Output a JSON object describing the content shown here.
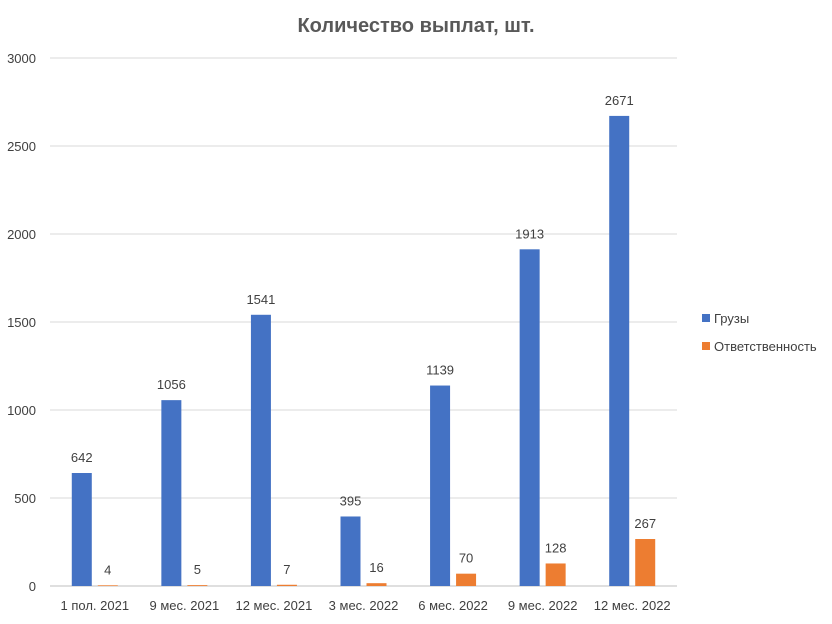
{
  "chart_data": {
    "type": "bar",
    "title": "Количество выплат, шт.",
    "xlabel": "",
    "ylabel": "",
    "categories": [
      "1 пол. 2021",
      "9 мес. 2021",
      "12 мес. 2021",
      "3 мес. 2022",
      "6 мес. 2022",
      "9 мес. 2022",
      "12 мес. 2022"
    ],
    "series": [
      {
        "name": "Грузы",
        "color": "#4472c4",
        "values": [
          642,
          1056,
          1541,
          395,
          1139,
          1913,
          2671
        ]
      },
      {
        "name": "Ответственность",
        "color": "#ed7d31",
        "values": [
          4,
          5,
          7,
          16,
          70,
          128,
          267
        ]
      }
    ],
    "ylim": [
      0,
      3000
    ],
    "yticks": [
      0,
      500,
      1000,
      1500,
      2000,
      2500,
      3000
    ],
    "grid": true,
    "legend_position": "right",
    "data_labels": true
  }
}
